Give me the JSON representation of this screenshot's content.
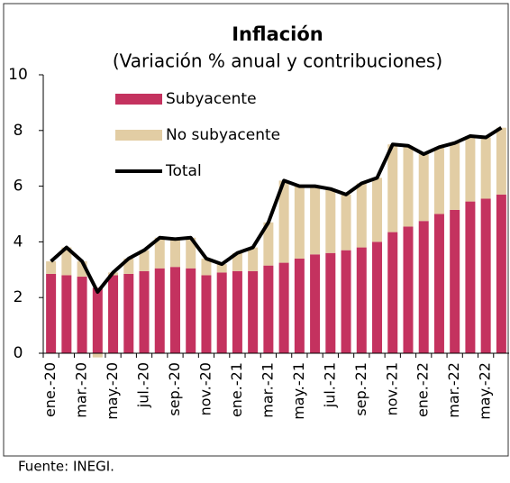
{
  "chart_data": {
    "type": "stacked-bar-line",
    "title": "Inflación",
    "subtitle": "(Variación % anual y contribuciones)",
    "source": "Fuente: INEGI.",
    "categories": [
      "ene.-20",
      null,
      "mar.-20",
      null,
      "may.-20",
      null,
      "jul.-20",
      null,
      "sep.-20",
      null,
      "nov.-20",
      null,
      "ene.-21",
      null,
      "mar.-21",
      null,
      "may.-21",
      null,
      "jul.-21",
      null,
      "sep.-21",
      null,
      "nov.-21",
      null,
      "ene.-22",
      null,
      "mar.-22",
      null,
      "may.-22",
      null
    ],
    "series": [
      {
        "name": "Subyacente",
        "color": "#c4325f",
        "kind": "bar",
        "values": [
          2.85,
          2.8,
          2.75,
          2.35,
          2.8,
          2.85,
          2.95,
          3.05,
          3.1,
          3.05,
          2.8,
          2.9,
          2.95,
          2.95,
          3.15,
          3.25,
          3.4,
          3.55,
          3.6,
          3.7,
          3.8,
          4.0,
          4.35,
          4.55,
          4.75,
          5.0,
          5.15,
          5.45,
          5.55,
          5.7
        ]
      },
      {
        "name": "No subyacente",
        "color": "#e2cda4",
        "kind": "bar",
        "values": [
          0.45,
          1.0,
          0.55,
          -0.15,
          0.1,
          0.55,
          0.75,
          1.1,
          1.0,
          1.1,
          0.6,
          0.3,
          0.65,
          0.85,
          1.55,
          2.95,
          2.6,
          2.45,
          2.3,
          2.0,
          2.3,
          2.3,
          3.15,
          2.9,
          2.4,
          2.4,
          2.4,
          2.35,
          2.2,
          2.4
        ]
      },
      {
        "name": "Total",
        "color": "#000000",
        "kind": "line",
        "values": [
          3.3,
          3.8,
          3.3,
          2.2,
          2.9,
          3.4,
          3.7,
          4.15,
          4.1,
          4.15,
          3.4,
          3.2,
          3.6,
          3.8,
          4.7,
          6.2,
          6.0,
          6.0,
          5.9,
          5.7,
          6.1,
          6.3,
          7.5,
          7.45,
          7.15,
          7.4,
          7.55,
          7.8,
          7.75,
          8.1
        ]
      }
    ],
    "ylim": [
      0,
      10
    ],
    "yticks": [
      0,
      2,
      4,
      6,
      8,
      10
    ]
  }
}
